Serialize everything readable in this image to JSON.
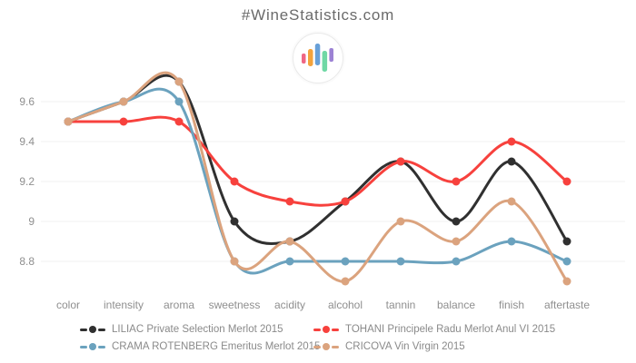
{
  "header": {
    "title": "#WineStatistics.com",
    "logo": {
      "icon": "bar-chart-logo-icon",
      "bar_colors": [
        "#ef6684",
        "#f3a33c",
        "#68a0d8",
        "#6fd8a5",
        "#9c82d4"
      ]
    }
  },
  "chart_data": {
    "type": "line",
    "title": "#WineStatistics.com",
    "categories": [
      "color",
      "intensity",
      "aroma",
      "sweetness",
      "acidity",
      "alcohol",
      "tannin",
      "balance",
      "finish",
      "aftertaste"
    ],
    "series": [
      {
        "name": "LILIAC Private Selection Merlot 2015",
        "color": "#303030",
        "values": [
          9.5,
          9.6,
          9.7,
          9.0,
          8.9,
          9.1,
          9.3,
          9.0,
          9.3,
          8.9
        ]
      },
      {
        "name": "TOHANI Principele Radu Merlot Anul VI 2015",
        "color": "#f7413d",
        "values": [
          9.5,
          9.5,
          9.5,
          9.2,
          9.1,
          9.1,
          9.3,
          9.2,
          9.4,
          9.2
        ]
      },
      {
        "name": "CRAMA ROTENBERG Emeritus Merlot 2015",
        "color": "#6ba2be",
        "values": [
          9.5,
          9.6,
          9.6,
          8.8,
          8.8,
          8.8,
          8.8,
          8.8,
          8.9,
          8.8
        ]
      },
      {
        "name": "CRICOVA Vin Virgin 2015",
        "color": "#dba37e",
        "values": [
          9.5,
          9.6,
          9.7,
          8.8,
          8.9,
          8.7,
          9.0,
          8.9,
          9.1,
          8.7
        ]
      }
    ],
    "yticks": {
      "values": [
        9.6,
        9.4,
        9.2,
        9.0,
        8.8
      ],
      "labels": [
        "9.6",
        "9.4",
        "9.2",
        "9",
        "8.8"
      ]
    },
    "ylim": [
      8.6,
      9.8
    ],
    "grid": "horizontal-only",
    "line_style": "smooth-with-point-markers",
    "legend_position": "bottom-two-columns",
    "text_color": "#8f8f8f"
  }
}
